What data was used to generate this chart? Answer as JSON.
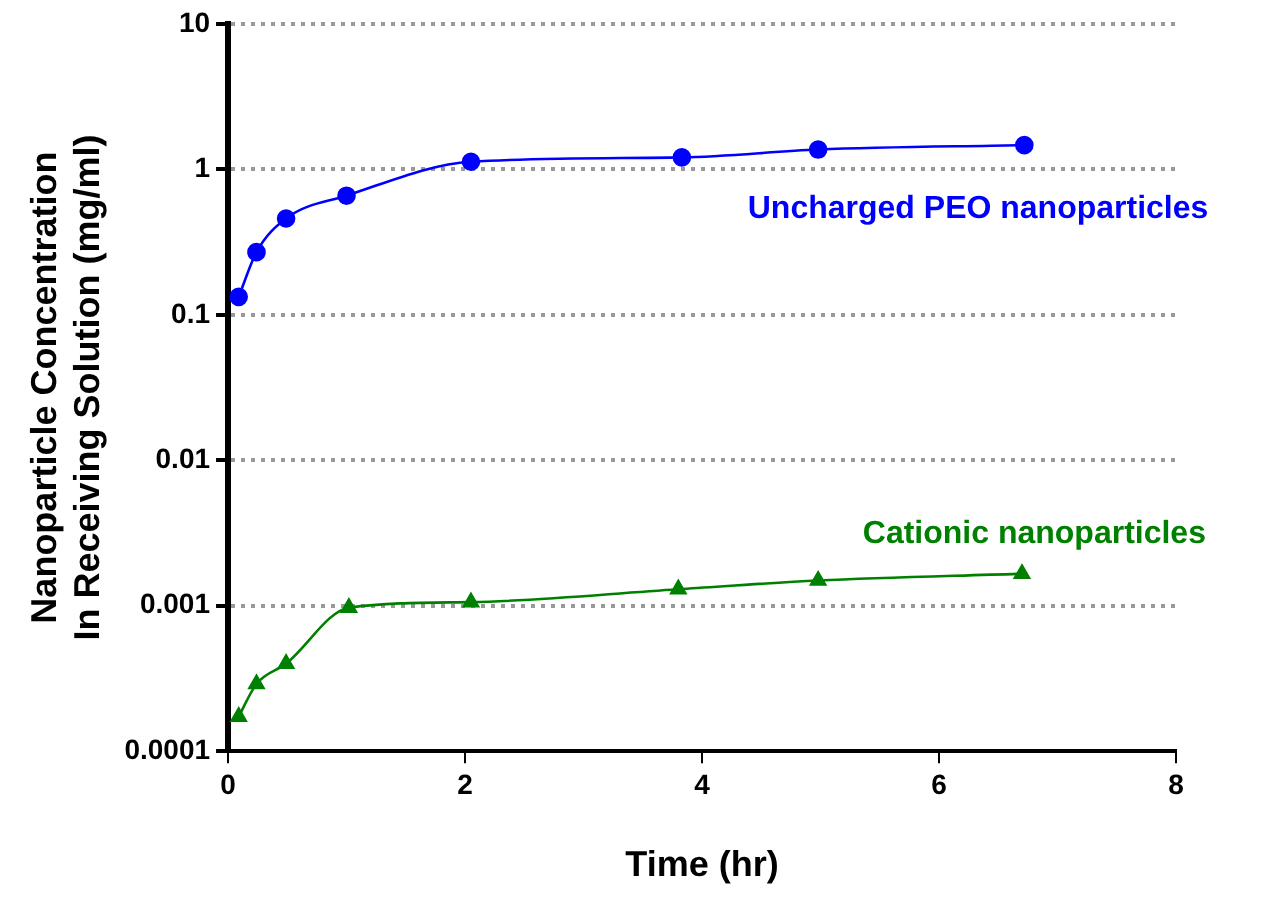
{
  "chart_data": {
    "type": "line",
    "xlabel": "Time (hr)",
    "ylabel": "Nanoparticle Concentration\nIn Receiving Solution (mg/ml)",
    "log": "y",
    "xlim": [
      0,
      8
    ],
    "xticks": [
      0,
      2,
      4,
      6,
      8
    ],
    "ylim": [
      0.0001,
      10
    ],
    "yticks": [
      0.0001,
      0.001,
      0.01,
      0.1,
      1,
      10
    ],
    "grid": "y",
    "legend": false,
    "line_style": "solid",
    "series": [
      {
        "name": "Uncharged PEO nanoparticles",
        "color": "#0000ff",
        "marker": "circle",
        "x": [
          0.09,
          0.24,
          0.49,
          1.0,
          2.05,
          3.83,
          4.98,
          6.72
        ],
        "values": [
          0.133,
          0.27,
          0.46,
          0.66,
          1.13,
          1.21,
          1.37,
          1.47
        ]
      },
      {
        "name": "Cationic nanoparticles",
        "color": "#008000",
        "marker": "triangle",
        "x": [
          0.09,
          0.24,
          0.49,
          1.02,
          2.05,
          3.8,
          4.98,
          6.7
        ],
        "values": [
          0.000173,
          0.00029,
          0.0004,
          0.00097,
          0.00106,
          0.0013,
          0.00149,
          0.00166
        ]
      }
    ]
  }
}
